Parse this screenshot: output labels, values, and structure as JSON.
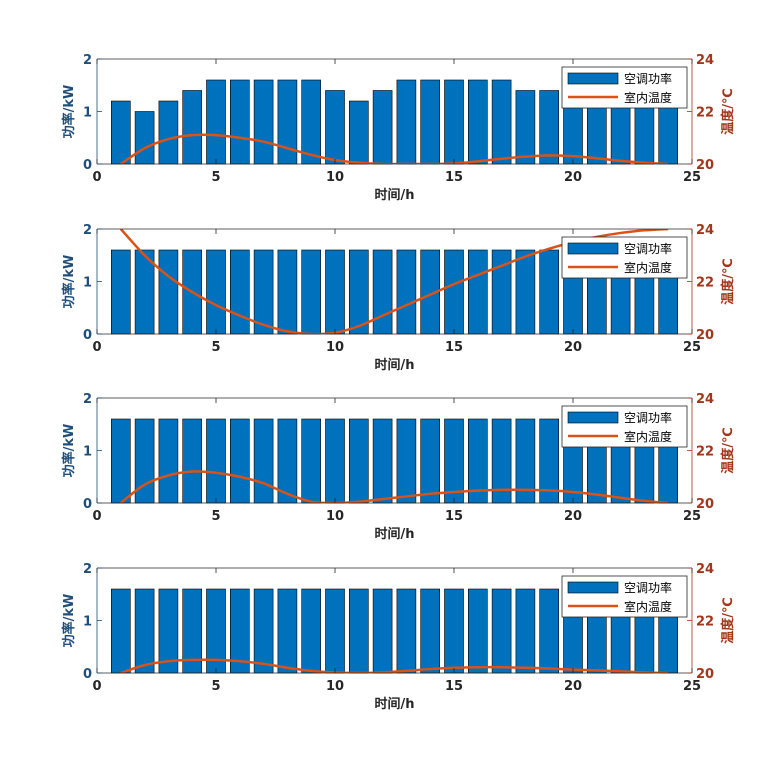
{
  "colors": {
    "bar": "#0072BD",
    "bar_edge": "#000000",
    "line": "#D95319",
    "left_axis": "#1F4E79",
    "right_axis": "#A2361B",
    "frame": "#262626"
  },
  "chart_data": [
    {
      "type": "bar",
      "xlabel": "时间/h",
      "ylabel_left": "功率/kW",
      "ylabel_right": "温度/℃",
      "xlim": [
        0,
        25
      ],
      "ylim_left": [
        0,
        2
      ],
      "ylim_right": [
        20,
        24
      ],
      "xticks": [
        "0",
        "5",
        "10",
        "15",
        "20",
        "25"
      ],
      "yticks_left": [
        "0",
        "1",
        "2"
      ],
      "yticks_right": [
        "20",
        "22",
        "24"
      ],
      "legend": [
        "空调功率",
        "室内温度"
      ],
      "legend_location": "top-right",
      "x": [
        1,
        2,
        3,
        4,
        5,
        6,
        7,
        8,
        9,
        10,
        11,
        12,
        13,
        14,
        15,
        16,
        17,
        18,
        19,
        20,
        21,
        22,
        23,
        24
      ],
      "series": [
        {
          "name": "空调功率",
          "values": [
            1.2,
            1.0,
            1.2,
            1.4,
            1.6,
            1.6,
            1.6,
            1.6,
            1.6,
            1.4,
            1.2,
            1.4,
            1.6,
            1.6,
            1.6,
            1.6,
            1.6,
            1.4,
            1.4,
            1.6,
            1.6,
            1.6,
            1.6,
            1.6
          ]
        },
        {
          "name": "室内温度",
          "values": [
            20.0,
            20.6,
            20.95,
            21.1,
            21.1,
            21.0,
            20.85,
            20.6,
            20.35,
            20.15,
            20.05,
            20.0,
            20.0,
            20.0,
            20.02,
            20.1,
            20.2,
            20.28,
            20.33,
            20.3,
            20.22,
            20.12,
            20.05,
            20.0
          ]
        }
      ]
    },
    {
      "type": "bar",
      "xlabel": "时间/h",
      "ylabel_left": "功率/kW",
      "ylabel_right": "温度/℃",
      "xlim": [
        0,
        25
      ],
      "ylim_left": [
        0,
        2
      ],
      "ylim_right": [
        20,
        24
      ],
      "xticks": [
        "0",
        "5",
        "10",
        "15",
        "20",
        "25"
      ],
      "yticks_left": [
        "0",
        "1",
        "2"
      ],
      "yticks_right": [
        "20",
        "22",
        "24"
      ],
      "legend": [
        "空调功率",
        "室内温度"
      ],
      "legend_location": "top-right",
      "x": [
        1,
        2,
        3,
        4,
        5,
        6,
        7,
        8,
        9,
        10,
        11,
        12,
        13,
        14,
        15,
        16,
        17,
        18,
        19,
        20,
        21,
        22,
        23,
        24
      ],
      "series": [
        {
          "name": "空调功率",
          "values": [
            1.6,
            1.6,
            1.6,
            1.6,
            1.6,
            1.6,
            1.6,
            1.6,
            1.6,
            1.6,
            1.6,
            1.6,
            1.6,
            1.6,
            1.6,
            1.6,
            1.6,
            1.6,
            1.6,
            1.6,
            1.6,
            1.6,
            1.6,
            1.6
          ]
        },
        {
          "name": "室内温度",
          "values": [
            24.0,
            23.0,
            22.2,
            21.6,
            21.1,
            20.7,
            20.35,
            20.1,
            20.0,
            20.05,
            20.3,
            20.7,
            21.1,
            21.5,
            21.9,
            22.25,
            22.6,
            22.95,
            23.25,
            23.5,
            23.7,
            23.85,
            23.95,
            24.0
          ]
        }
      ]
    },
    {
      "type": "bar",
      "xlabel": "时间/h",
      "ylabel_left": "功率/kW",
      "ylabel_right": "温度/℃",
      "xlim": [
        0,
        25
      ],
      "ylim_left": [
        0,
        2
      ],
      "ylim_right": [
        20,
        24
      ],
      "xticks": [
        "0",
        "5",
        "10",
        "15",
        "20",
        "25"
      ],
      "yticks_left": [
        "0",
        "1",
        "2"
      ],
      "yticks_right": [
        "20",
        "22",
        "24"
      ],
      "legend": [
        "空调功率",
        "室内温度"
      ],
      "legend_location": "top-right",
      "x": [
        1,
        2,
        3,
        4,
        5,
        6,
        7,
        8,
        9,
        10,
        11,
        12,
        13,
        14,
        15,
        16,
        17,
        18,
        19,
        20,
        21,
        22,
        23,
        24
      ],
      "series": [
        {
          "name": "空调功率",
          "values": [
            1.6,
            1.6,
            1.6,
            1.6,
            1.6,
            1.6,
            1.6,
            1.6,
            1.6,
            1.6,
            1.6,
            1.6,
            1.6,
            1.6,
            1.6,
            1.6,
            1.6,
            1.6,
            1.6,
            1.6,
            1.6,
            1.6,
            1.6,
            1.6
          ]
        },
        {
          "name": "室内温度",
          "values": [
            20.0,
            20.7,
            21.05,
            21.2,
            21.15,
            21.0,
            20.75,
            20.35,
            20.05,
            20.0,
            20.05,
            20.15,
            20.25,
            20.35,
            20.42,
            20.47,
            20.5,
            20.5,
            20.48,
            20.42,
            20.32,
            20.2,
            20.08,
            20.0
          ]
        }
      ]
    },
    {
      "type": "bar",
      "xlabel": "时间/h",
      "ylabel_left": "功率/kW",
      "ylabel_right": "温度/℃",
      "xlim": [
        0,
        25
      ],
      "ylim_left": [
        0,
        2
      ],
      "ylim_right": [
        20,
        24
      ],
      "xticks": [
        "0",
        "5",
        "10",
        "15",
        "20",
        "25"
      ],
      "yticks_left": [
        "0",
        "1",
        "2"
      ],
      "yticks_right": [
        "20",
        "22",
        "24"
      ],
      "legend": [
        "空调功率",
        "室内温度"
      ],
      "legend_location": "top-right",
      "x": [
        1,
        2,
        3,
        4,
        5,
        6,
        7,
        8,
        9,
        10,
        11,
        12,
        13,
        14,
        15,
        16,
        17,
        18,
        19,
        20,
        21,
        22,
        23,
        24
      ],
      "series": [
        {
          "name": "空调功率",
          "values": [
            1.6,
            1.6,
            1.6,
            1.6,
            1.6,
            1.6,
            1.6,
            1.6,
            1.6,
            1.6,
            1.6,
            1.6,
            1.6,
            1.6,
            1.6,
            1.6,
            1.6,
            1.6,
            1.6,
            1.6,
            1.6,
            1.6,
            1.6,
            1.6
          ]
        },
        {
          "name": "室内温度",
          "values": [
            20.0,
            20.3,
            20.45,
            20.5,
            20.5,
            20.45,
            20.35,
            20.2,
            20.08,
            20.02,
            20.0,
            20.02,
            20.08,
            20.15,
            20.2,
            20.22,
            20.22,
            20.2,
            20.17,
            20.13,
            20.1,
            20.06,
            20.02,
            20.0
          ]
        }
      ]
    }
  ]
}
